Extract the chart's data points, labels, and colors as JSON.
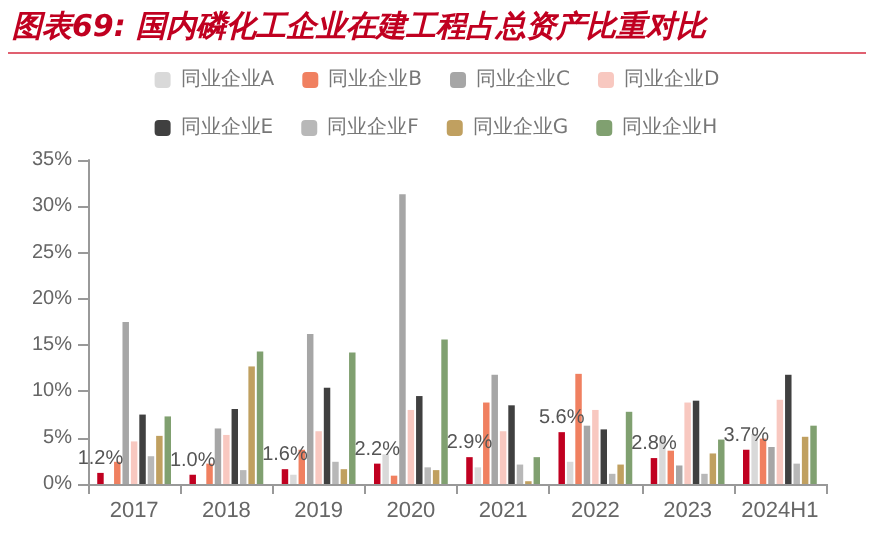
{
  "chart_data": {
    "type": "bar",
    "title": "图表69: 国内磷化工企业在建工程占总资产比重对比",
    "categories": [
      "2017",
      "2018",
      "2019",
      "2020",
      "2021",
      "2022",
      "2023",
      "2024H1"
    ],
    "series": [
      {
        "color": "#c00020",
        "values": [
          1.2,
          1.0,
          1.6,
          2.2,
          2.9,
          5.6,
          2.8,
          3.7
        ],
        "value_labels": [
          "1.2%",
          "1.0%",
          "1.6%",
          "2.2%",
          "2.9%",
          "5.6%",
          "2.8%",
          "3.7%"
        ]
      },
      {
        "name": "同业企业A",
        "color": "#d9d9d9",
        "values": [
          null,
          null,
          1.0,
          3.2,
          1.8,
          2.4,
          5.1,
          5.4
        ]
      },
      {
        "name": "同业企业B",
        "color": "#f08060",
        "values": [
          2.4,
          2.2,
          3.7,
          0.9,
          8.8,
          11.9,
          3.6,
          4.9
        ]
      },
      {
        "name": "同业企业C",
        "color": "#a6a6a6",
        "values": [
          17.5,
          6.0,
          16.2,
          31.3,
          11.8,
          6.3,
          2.0,
          4.0
        ]
      },
      {
        "name": "同业企业D",
        "color": "#f8c8c0",
        "values": [
          4.6,
          5.3,
          5.7,
          8.0,
          5.7,
          8.0,
          8.8,
          9.1
        ]
      },
      {
        "name": "同业企业E",
        "color": "#404040",
        "values": [
          7.5,
          8.1,
          10.4,
          9.5,
          8.5,
          5.9,
          9.0,
          11.8
        ]
      },
      {
        "name": "同业企业F",
        "color": "#b8b8b8",
        "values": [
          3.0,
          1.5,
          2.4,
          1.8,
          2.1,
          1.1,
          1.1,
          2.2
        ]
      },
      {
        "name": "同业企业G",
        "color": "#c0a060",
        "values": [
          5.2,
          12.7,
          1.6,
          1.5,
          0.3,
          2.1,
          3.3,
          5.1
        ]
      },
      {
        "name": "同业企业H",
        "color": "#80a070",
        "values": [
          7.3,
          14.3,
          14.2,
          15.6,
          2.9,
          7.8,
          4.8,
          6.3
        ]
      }
    ],
    "ylim": [
      0,
      35
    ],
    "yticks": [
      {
        "value": 0,
        "label": "0%"
      },
      {
        "value": 5,
        "label": "5%"
      },
      {
        "value": 10,
        "label": "10%"
      },
      {
        "value": 15,
        "label": "15%"
      },
      {
        "value": 20,
        "label": "20%"
      },
      {
        "value": 25,
        "label": "25%"
      },
      {
        "value": 30,
        "label": "30%"
      },
      {
        "value": 35,
        "label": "35%"
      }
    ],
    "grid": false,
    "legend": "top"
  }
}
